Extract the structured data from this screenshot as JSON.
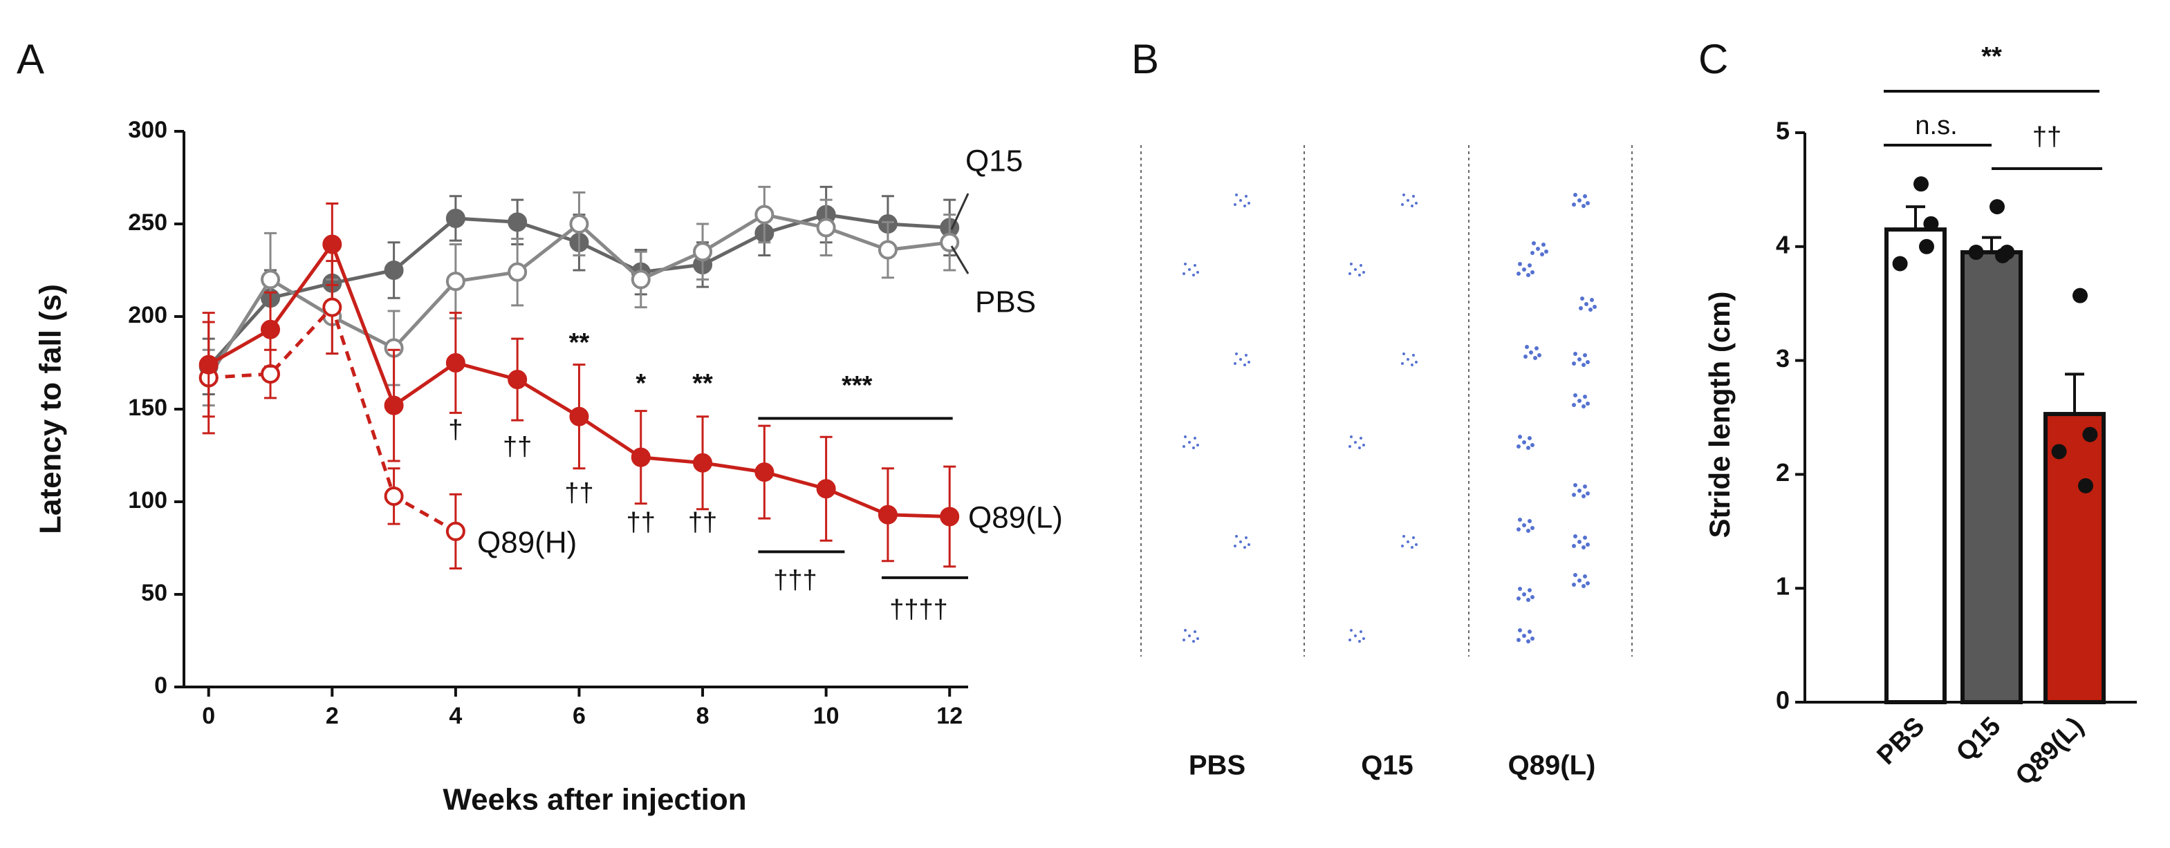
{
  "chart_data": [
    {
      "panel": "A",
      "type": "line",
      "xlabel": "Weeks after injection",
      "ylabel": "Latency to fall (s)",
      "x": [
        0,
        1,
        2,
        3,
        4,
        5,
        6,
        7,
        8,
        9,
        10,
        11,
        12
      ],
      "xlim": [
        -0.4,
        12.3
      ],
      "xticks": [
        0,
        2,
        4,
        6,
        8,
        10,
        12
      ],
      "ylim": [
        0,
        300
      ],
      "yticks": [
        0,
        50,
        100,
        150,
        200,
        250,
        300
      ],
      "series": [
        {
          "name": "Q15",
          "color": "#666666",
          "marker": "filled",
          "dashed": false,
          "values": [
            173,
            210,
            218,
            225,
            253,
            251,
            240,
            224,
            228,
            245,
            255,
            250,
            248
          ],
          "errors": [
            15,
            15,
            18,
            15,
            12,
            12,
            15,
            12,
            12,
            12,
            15,
            15,
            15
          ]
        },
        {
          "name": "PBS",
          "color": "#888888",
          "marker": "open",
          "dashed": false,
          "values": [
            167,
            220,
            200,
            183,
            219,
            224,
            250,
            220,
            235,
            255,
            248,
            236,
            240
          ],
          "errors": [
            15,
            25,
            20,
            20,
            20,
            18,
            17,
            15,
            15,
            15,
            15,
            15,
            15
          ]
        },
        {
          "name": "Q89(H)",
          "color": "#c8201a",
          "marker": "open",
          "dashed": true,
          "values": [
            167,
            169,
            205,
            103,
            84,
            null,
            null,
            null,
            null,
            null,
            null,
            null,
            null
          ],
          "errors": [
            30,
            13,
            25,
            15,
            20,
            null,
            null,
            null,
            null,
            null,
            null,
            null,
            null
          ]
        },
        {
          "name": "Q89(L)",
          "color": "#c8201a",
          "marker": "filled",
          "dashed": false,
          "values": [
            174,
            193,
            239,
            152,
            175,
            166,
            146,
            124,
            121,
            116,
            107,
            93,
            92
          ],
          "errors": [
            28,
            20,
            22,
            30,
            27,
            22,
            28,
            25,
            25,
            25,
            28,
            25,
            27
          ]
        }
      ],
      "annotations": [
        "**",
        "*",
        "**",
        "***",
        "†",
        "††",
        "††",
        "††",
        "††",
        "†††",
        "††††"
      ]
    },
    {
      "panel": "B",
      "type": "footprints",
      "categories": [
        "PBS",
        "Q15",
        "Q89(L)"
      ]
    },
    {
      "panel": "C",
      "type": "bar",
      "ylabel": "Stride length (cm)",
      "categories": [
        "PBS",
        "Q15",
        "Q89(L)"
      ],
      "values": [
        4.15,
        3.95,
        2.53
      ],
      "errors": [
        0.2,
        0.13,
        0.35
      ],
      "colors": [
        "#ffffff",
        "#595959",
        "#c0200f"
      ],
      "points": [
        [
          4.55,
          4.2,
          3.85,
          4.0
        ],
        [
          4.35,
          3.95,
          3.95,
          3.92
        ],
        [
          3.57,
          2.35,
          2.2,
          1.9
        ]
      ],
      "ylim": [
        0,
        5
      ],
      "yticks": [
        0,
        1,
        2,
        3,
        4,
        5
      ],
      "annotations": [
        "**",
        "n.s.",
        "††"
      ]
    }
  ]
}
